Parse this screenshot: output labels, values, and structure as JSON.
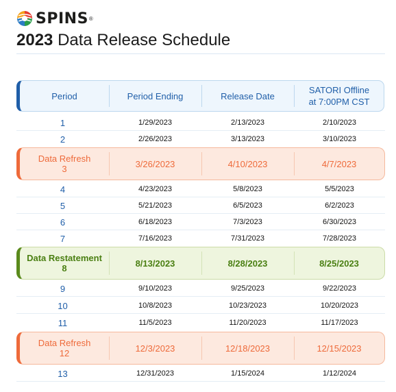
{
  "brand": {
    "name": "SPINS",
    "registered": "®"
  },
  "title": {
    "year": "2023",
    "text": "Data Release Schedule"
  },
  "table": {
    "headers": [
      "Period",
      "Period Ending",
      "Release Date",
      "SATORI Offline",
      "at 7:00PM CST"
    ],
    "rows": [
      {
        "period": "1",
        "ending": "1/29/2023",
        "release": "2/13/2023",
        "offline": "2/10/2023"
      },
      {
        "period": "2",
        "ending": "2/26/2023",
        "release": "3/13/2023",
        "offline": "3/10/2023"
      },
      {
        "label": "Data Refresh",
        "period": "3",
        "ending": "3/26/2023",
        "release": "4/10/2023",
        "offline": "4/7/2023"
      },
      {
        "period": "4",
        "ending": "4/23/2023",
        "release": "5/8/2023",
        "offline": "5/5/2023"
      },
      {
        "period": "5",
        "ending": "5/21/2023",
        "release": "6/5/2023",
        "offline": "6/2/2023"
      },
      {
        "period": "6",
        "ending": "6/18/2023",
        "release": "7/3/2023",
        "offline": "6/30/2023"
      },
      {
        "period": "7",
        "ending": "7/16/2023",
        "release": "7/31/2023",
        "offline": "7/28/2023"
      },
      {
        "label": "Data Restatement",
        "period": "8",
        "ending": "8/13/2023",
        "release": "8/28/2023",
        "offline": "8/25/2023"
      },
      {
        "period": "9",
        "ending": "9/10/2023",
        "release": "9/25/2023",
        "offline": "9/22/2023"
      },
      {
        "period": "10",
        "ending": "10/8/2023",
        "release": "10/23/2023",
        "offline": "10/20/2023"
      },
      {
        "period": "11",
        "ending": "11/5/2023",
        "release": "11/20/2023",
        "offline": "11/17/2023"
      },
      {
        "label": "Data Refresh",
        "period": "12",
        "ending": "12/3/2023",
        "release": "12/18/2023",
        "offline": "12/15/2023"
      },
      {
        "period": "13",
        "ending": "12/31/2023",
        "release": "1/15/2024",
        "offline": "1/12/2024"
      }
    ]
  },
  "colors": {
    "accent_blue": "#1f5ea8",
    "refresh_orange": "#ee6a3a",
    "restatement_green": "#5a8a1c"
  }
}
